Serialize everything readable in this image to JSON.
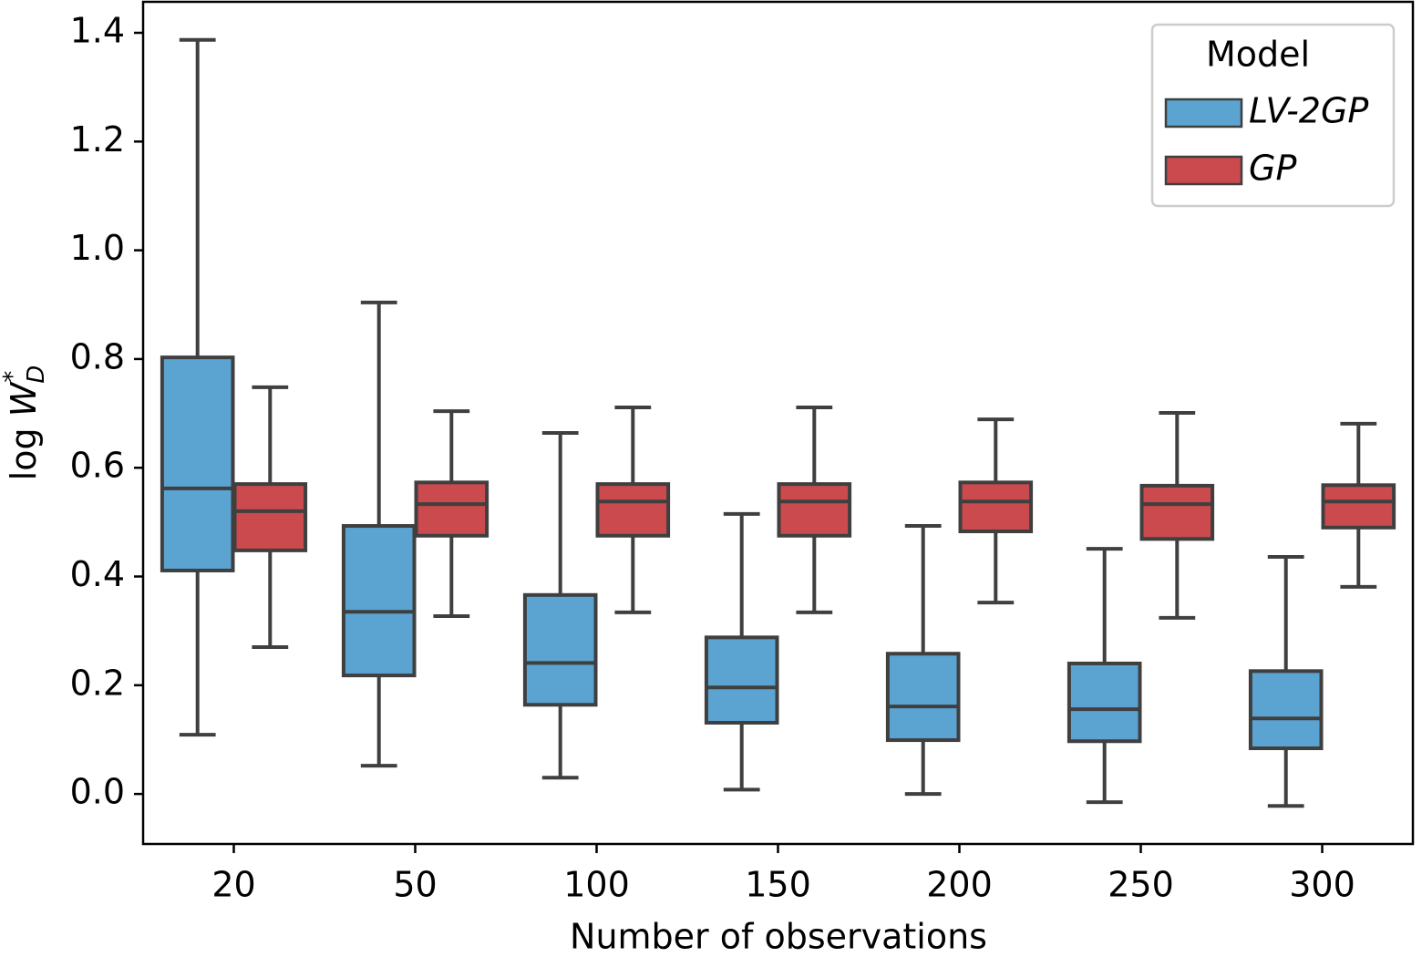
{
  "chart_data": {
    "type": "box",
    "xlabel": "Number of observations",
    "ylabel": {
      "prefix": "log",
      "var": "W",
      "sup": "*",
      "sub": "D"
    },
    "categories": [
      "20",
      "50",
      "100",
      "150",
      "200",
      "250",
      "300"
    ],
    "legend_title": "Model",
    "legend_position": "upper right",
    "edge_color": "#3f3f3f",
    "series": [
      {
        "name": "LV-2GP",
        "color": "#5ba3d0",
        "min": [
          0.109,
          0.052,
          0.03,
          0.008,
          0.0,
          -0.015,
          -0.022
        ],
        "q1": [
          0.411,
          0.218,
          0.164,
          0.131,
          0.099,
          0.097,
          0.084
        ],
        "median": [
          0.562,
          0.335,
          0.241,
          0.196,
          0.161,
          0.156,
          0.139
        ],
        "q3": [
          0.803,
          0.493,
          0.366,
          0.288,
          0.258,
          0.24,
          0.226
        ],
        "max": [
          1.387,
          0.904,
          0.664,
          0.515,
          0.493,
          0.451,
          0.436
        ]
      },
      {
        "name": "GP",
        "color": "#cb4a4e",
        "min": [
          0.27,
          0.327,
          0.334,
          0.334,
          0.352,
          0.324,
          0.381
        ],
        "q1": [
          0.448,
          0.475,
          0.475,
          0.475,
          0.483,
          0.469,
          0.49
        ],
        "median": [
          0.52,
          0.533,
          0.538,
          0.538,
          0.538,
          0.533,
          0.538
        ],
        "q3": [
          0.57,
          0.573,
          0.57,
          0.57,
          0.573,
          0.567,
          0.568
        ],
        "max": [
          0.748,
          0.704,
          0.711,
          0.711,
          0.689,
          0.701,
          0.681
        ]
      }
    ],
    "ylim": [
      -0.092,
      1.457
    ],
    "yticks": [
      {
        "value": 0,
        "label": "0.0"
      },
      0.2,
      0.4,
      0.6,
      0.8,
      {
        "value": 1,
        "label": "1.0"
      },
      1.2,
      1.4
    ]
  }
}
